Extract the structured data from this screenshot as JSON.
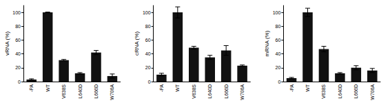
{
  "chart_data": [
    {
      "type": "bar",
      "y_label": "vRNA (%)",
      "categories": [
        "-PA",
        "WT",
        "V638S",
        "L640D",
        "L666D",
        "W706A"
      ],
      "values": [
        3,
        100,
        31,
        12,
        42,
        8
      ],
      "errors": [
        1,
        0.5,
        1,
        1,
        3,
        3
      ],
      "color": "#111111",
      "ylim": [
        0,
        110
      ],
      "yticks": [
        0,
        20,
        40,
        60,
        80,
        100
      ],
      "grid": false
    },
    {
      "type": "bar",
      "y_label": "cRNA (%)",
      "categories": [
        "-PA",
        "WT",
        "V638S",
        "L640D",
        "L666D",
        "W706A"
      ],
      "values": [
        10,
        100,
        49,
        35,
        45,
        23
      ],
      "errors": [
        2,
        8,
        2,
        3,
        7,
        1
      ],
      "color": "#111111",
      "ylim": [
        0,
        110
      ],
      "yticks": [
        0,
        20,
        40,
        60,
        80,
        100
      ],
      "grid": false
    },
    {
      "type": "bar",
      "y_label": "mRNA (%)",
      "categories": [
        "-PA",
        "WT",
        "V638S",
        "L640D",
        "L666D",
        "W706A"
      ],
      "values": [
        5,
        100,
        47,
        12,
        20,
        16
      ],
      "errors": [
        1,
        6,
        4,
        1,
        3,
        3
      ],
      "color": "#111111",
      "ylim": [
        0,
        110
      ],
      "yticks": [
        0,
        20,
        40,
        60,
        80,
        100
      ],
      "grid": false
    }
  ]
}
